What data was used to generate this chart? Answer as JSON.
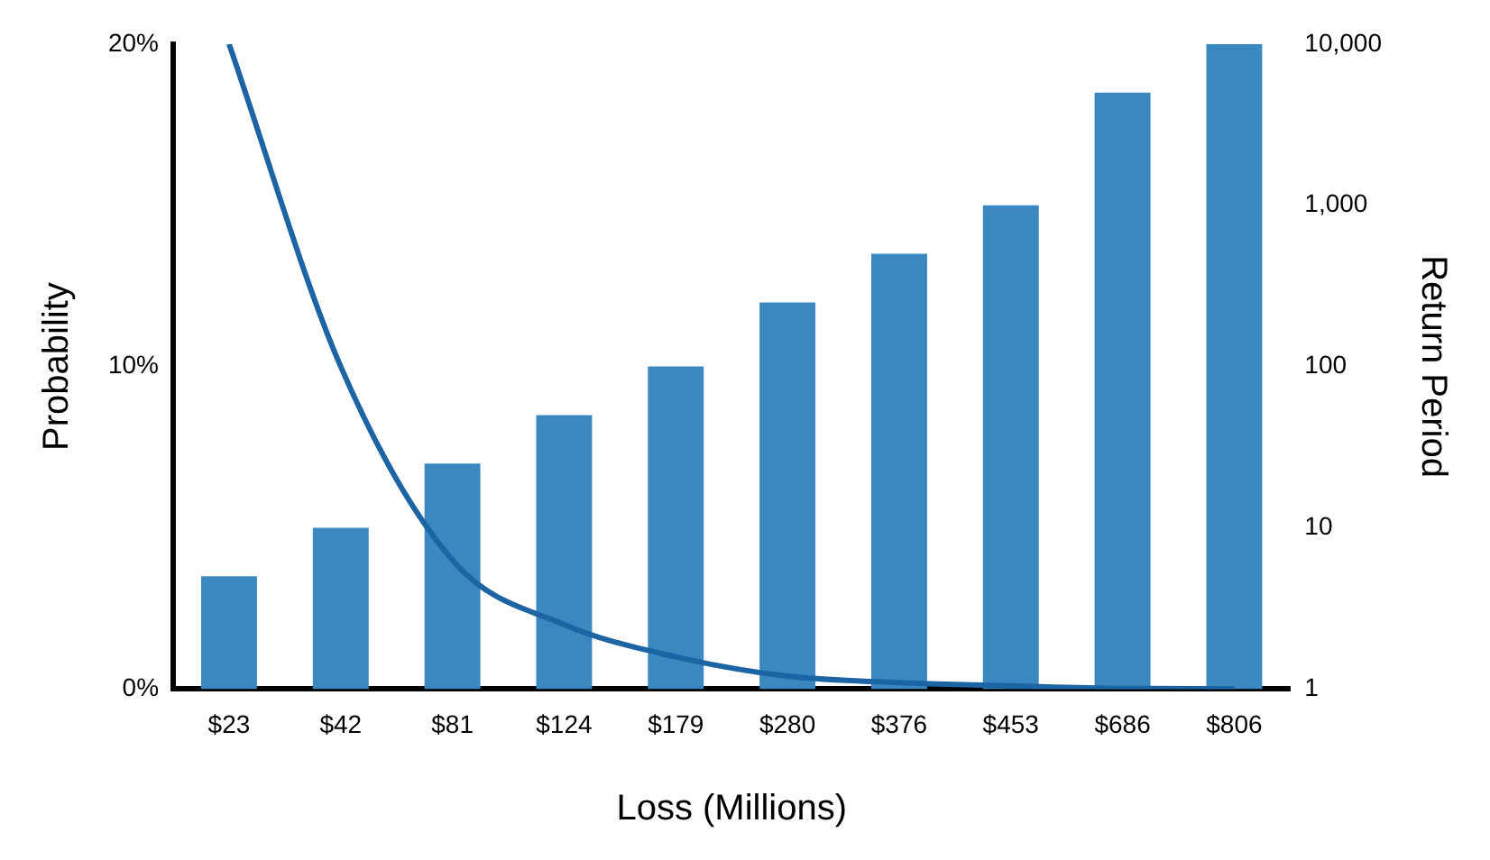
{
  "chart_data": {
    "type": "bar",
    "xlabel": "Loss (Millions)",
    "ylabel": "Probability",
    "y2label": "Return Period",
    "categories": [
      "$23",
      "$42",
      "$81",
      "$124",
      "$179",
      "$280",
      "$376",
      "$453",
      "$686",
      "$806"
    ],
    "series": [
      {
        "axis": "y2",
        "color": "#3a88bf",
        "values": [
          5,
          10,
          25,
          50,
          100,
          250,
          500,
          1000,
          5000,
          10000
        ]
      },
      {
        "type": "line",
        "axis": "y",
        "color": "#1c64a3",
        "values": [
          20,
          10,
          4,
          2,
          1,
          0.4,
          0.2,
          0.1,
          0.02,
          0.01
        ]
      }
    ],
    "ylim": [
      0,
      20
    ],
    "yticks": [
      {
        "value": 0,
        "label": "0%"
      },
      {
        "value": 10,
        "label": "10%"
      },
      {
        "value": 20,
        "label": "20%"
      }
    ],
    "y2lim": [
      1,
      10000
    ],
    "y2ticks": [
      1,
      10,
      100,
      {
        "value": 1000,
        "label": "1,000"
      },
      {
        "value": 10000,
        "label": "10,000"
      }
    ],
    "log": "y2",
    "grid": false,
    "legend": false,
    "marker": "none",
    "line_style": "solid"
  }
}
